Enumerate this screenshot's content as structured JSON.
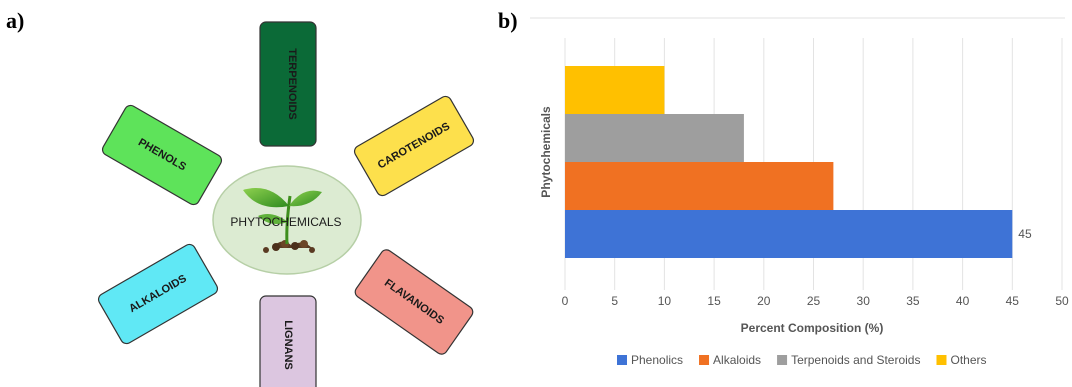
{
  "panels": {
    "a": "a)",
    "b": "b)"
  },
  "diagram": {
    "center": "PHYTOCHEMICALS",
    "nodes": [
      {
        "label": "TERPENOIDS",
        "color": "#0b6a37"
      },
      {
        "label": "CAROTENOIDS",
        "color": "#fde04c"
      },
      {
        "label": "FLAVANOIDS",
        "color": "#f1948a"
      },
      {
        "label": "LIGNANS",
        "color": "#dcc6e0"
      },
      {
        "label": "ALKALOIDS",
        "color": "#60e8f5"
      },
      {
        "label": "PHENOLS",
        "color": "#5ee35a"
      }
    ],
    "center_fill": "#dcebd2"
  },
  "chart_data": {
    "type": "bar",
    "orientation": "horizontal",
    "series": [
      {
        "name": "Phenolics",
        "value": 45,
        "color": "#3e73d6"
      },
      {
        "name": "Alkaloids",
        "value": 27,
        "color": "#f07122"
      },
      {
        "name": "Terpenoids and Steroids",
        "value": 18,
        "color": "#9e9e9e"
      },
      {
        "name": "Others",
        "value": 10,
        "color": "#ffc000"
      }
    ],
    "data_labels": [
      "45"
    ],
    "xlabel": "Percent Composition (%)",
    "ylabel": "Phytochemicals",
    "xlim": [
      0,
      50
    ],
    "xticks": [
      "0",
      "5",
      "10",
      "15",
      "20",
      "25",
      "30",
      "35",
      "40",
      "45",
      "50"
    ],
    "grid": true,
    "legend_position": "bottom"
  }
}
